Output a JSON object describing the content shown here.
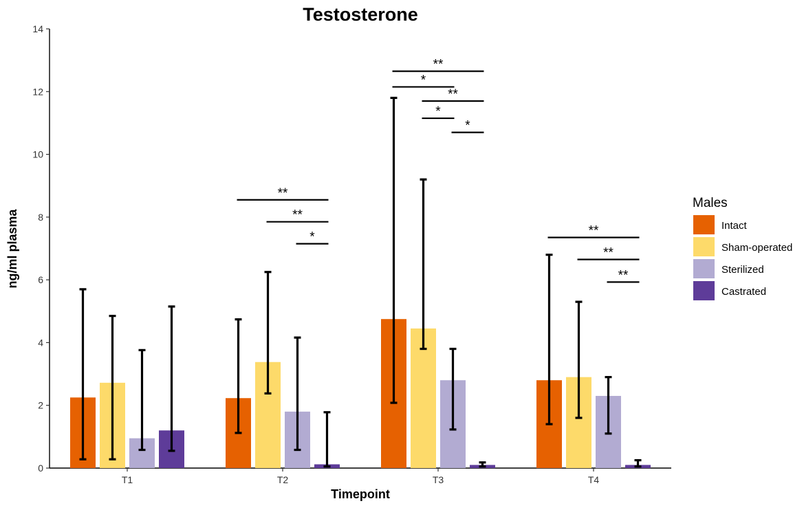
{
  "chart_data": {
    "type": "bar",
    "title": "Testosterone",
    "xlabel": "Timepoint",
    "ylabel": "ng/ml plasma",
    "ylim": [
      0,
      14
    ],
    "yticks": [
      0,
      2,
      4,
      6,
      8,
      10,
      12,
      14
    ],
    "categories": [
      "T1",
      "T2",
      "T3",
      "T4"
    ],
    "legend": {
      "title": "Males",
      "position": "right"
    },
    "grid": false,
    "series": [
      {
        "name": "Intact",
        "color": "#E66101",
        "values": [
          2.25,
          2.23,
          4.75,
          2.8
        ],
        "err_low": [
          0.28,
          1.12,
          2.08,
          1.4
        ],
        "err_high": [
          5.7,
          4.74,
          11.8,
          6.8
        ]
      },
      {
        "name": "Sham-operated",
        "color": "#FDDA6A",
        "values": [
          2.72,
          3.38,
          4.45,
          2.9
        ],
        "err_low": [
          0.28,
          2.38,
          3.8,
          1.6
        ],
        "err_high": [
          4.85,
          6.25,
          9.2,
          5.3
        ]
      },
      {
        "name": "Sterilized",
        "color": "#B2ABD2",
        "values": [
          0.95,
          1.8,
          2.8,
          2.3
        ],
        "err_low": [
          0.58,
          0.58,
          1.23,
          1.1
        ],
        "err_high": [
          3.76,
          4.16,
          3.8,
          2.9
        ]
      },
      {
        "name": "Castrated",
        "color": "#5E3C99",
        "values": [
          1.2,
          0.12,
          0.1,
          0.1
        ],
        "err_low": [
          0.55,
          0.05,
          0.05,
          0.05
        ],
        "err_high": [
          5.15,
          1.78,
          0.18,
          0.25
        ]
      }
    ],
    "significance": [
      {
        "category": "T2",
        "from": "Intact",
        "to": "Castrated",
        "label": "**",
        "y": 8.55
      },
      {
        "category": "T2",
        "from": "Sham-operated",
        "to": "Castrated",
        "label": "**",
        "y": 7.85
      },
      {
        "category": "T2",
        "from": "Sterilized",
        "to": "Castrated",
        "label": "*",
        "y": 7.15
      },
      {
        "category": "T3",
        "from": "Intact",
        "to": "Castrated",
        "label": "**",
        "y": 12.65
      },
      {
        "category": "T3",
        "from": "Intact",
        "to": "Sterilized",
        "label": "*",
        "y": 12.15
      },
      {
        "category": "T3",
        "from": "Sham-operated",
        "to": "Castrated",
        "label": "**",
        "y": 11.7
      },
      {
        "category": "T3",
        "from": "Sham-operated",
        "to": "Sterilized",
        "label": "*",
        "y": 11.15
      },
      {
        "category": "T3",
        "from": "Sterilized",
        "to": "Castrated",
        "label": "*",
        "y": 10.7
      },
      {
        "category": "T4",
        "from": "Intact",
        "to": "Castrated",
        "label": "**",
        "y": 7.35
      },
      {
        "category": "T4",
        "from": "Sham-operated",
        "to": "Castrated",
        "label": "**",
        "y": 6.65
      },
      {
        "category": "T4",
        "from": "Sterilized",
        "to": "Castrated",
        "label": "**",
        "y": 5.93
      }
    ]
  }
}
